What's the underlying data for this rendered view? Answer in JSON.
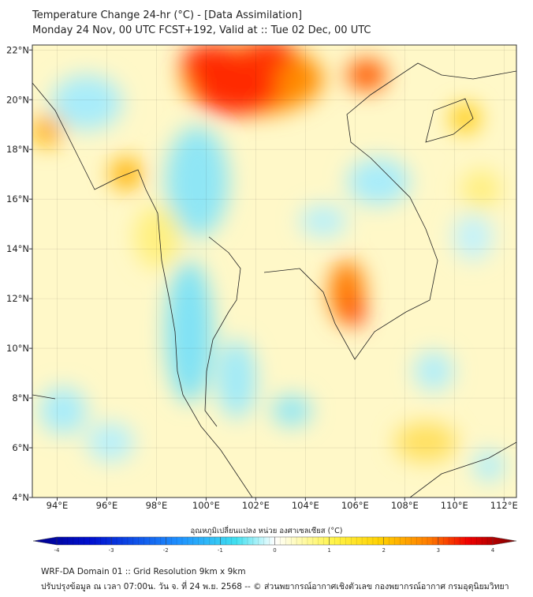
{
  "header": {
    "title": "Temperature Change 24-hr (°C) - [Data Assimilation]",
    "subtitle": "Monday 24 Nov, 00 UTC FCST+192, Valid at :: Tue 02 Dec, 00 UTC"
  },
  "map": {
    "lon_range": [
      93,
      112.5
    ],
    "lat_range": [
      4,
      22.2
    ],
    "lon_ticks": [
      "94°E",
      "96°E",
      "98°E",
      "100°E",
      "102°E",
      "104°E",
      "106°E",
      "108°E",
      "110°E",
      "112°E"
    ],
    "lat_ticks": [
      "22°N",
      "20°N",
      "18°N",
      "16°N",
      "14°N",
      "12°N",
      "10°N",
      "8°N",
      "6°N",
      "4°N"
    ]
  },
  "colorbar": {
    "label": "อุณหภูมิเปลี่ยนแปลง หน่วย องศาเซลเซียส (°C)",
    "ticks": [
      "-4",
      "-3",
      "-2",
      "-1",
      "0",
      "1",
      "2",
      "3",
      "4"
    ],
    "range": [
      -4,
      4
    ]
  },
  "footer": {
    "line1": "WRF-DA Domain 01 :: Grid Resolution 9km x 9km",
    "line2": "ปรับปรุงข้อมูล ณ เวลา 07:00น. วัน จ. ที่ 24 พ.ย. 2568 -- © ส่วนพยากรณ์อากาศเชิงตัวเลข กองพยากรณ์อากาศ กรมอุตุนิยมวิทยา"
  }
}
